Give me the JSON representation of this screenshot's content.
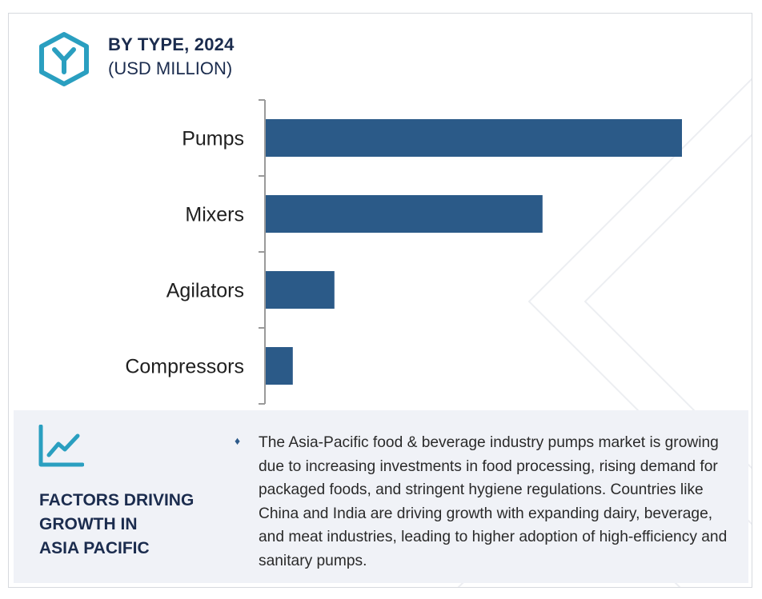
{
  "header": {
    "title": "BY TYPE, 2024",
    "subtitle": "(USD MILLION)",
    "logo_icon": "hexagon-y-logo-icon"
  },
  "colors": {
    "bar": "#2b5a88",
    "accent": "#2a9fc0",
    "heading": "#1b2c4e",
    "panel_bg": "#f0f2f7"
  },
  "chart_data": {
    "type": "bar",
    "orientation": "horizontal",
    "title": "BY TYPE, 2024",
    "subtitle": "(USD MILLION)",
    "categories": [
      "Pumps",
      "Mixers",
      "Agilators",
      "Compressors"
    ],
    "values": [
      100,
      66.5,
      16.5,
      6.5
    ],
    "xlim": [
      0,
      100
    ],
    "grid": false,
    "legend": "none"
  },
  "factors": {
    "icon": "line-chart-trend-icon",
    "title_lines": [
      "FACTORS DRIVING",
      "GROWTH IN",
      "ASIA PACIFIC"
    ],
    "bullet_icon": "diamond-bullet-icon",
    "text": "The Asia-Pacific food & beverage industry pumps market is growing due to increasing investments in food processing, rising demand for packaged foods, and stringent hygiene regulations. Countries like China and India are driving growth with expanding dairy, beverage, and meat industries, leading to higher adoption of high-efficiency and sanitary pumps."
  }
}
